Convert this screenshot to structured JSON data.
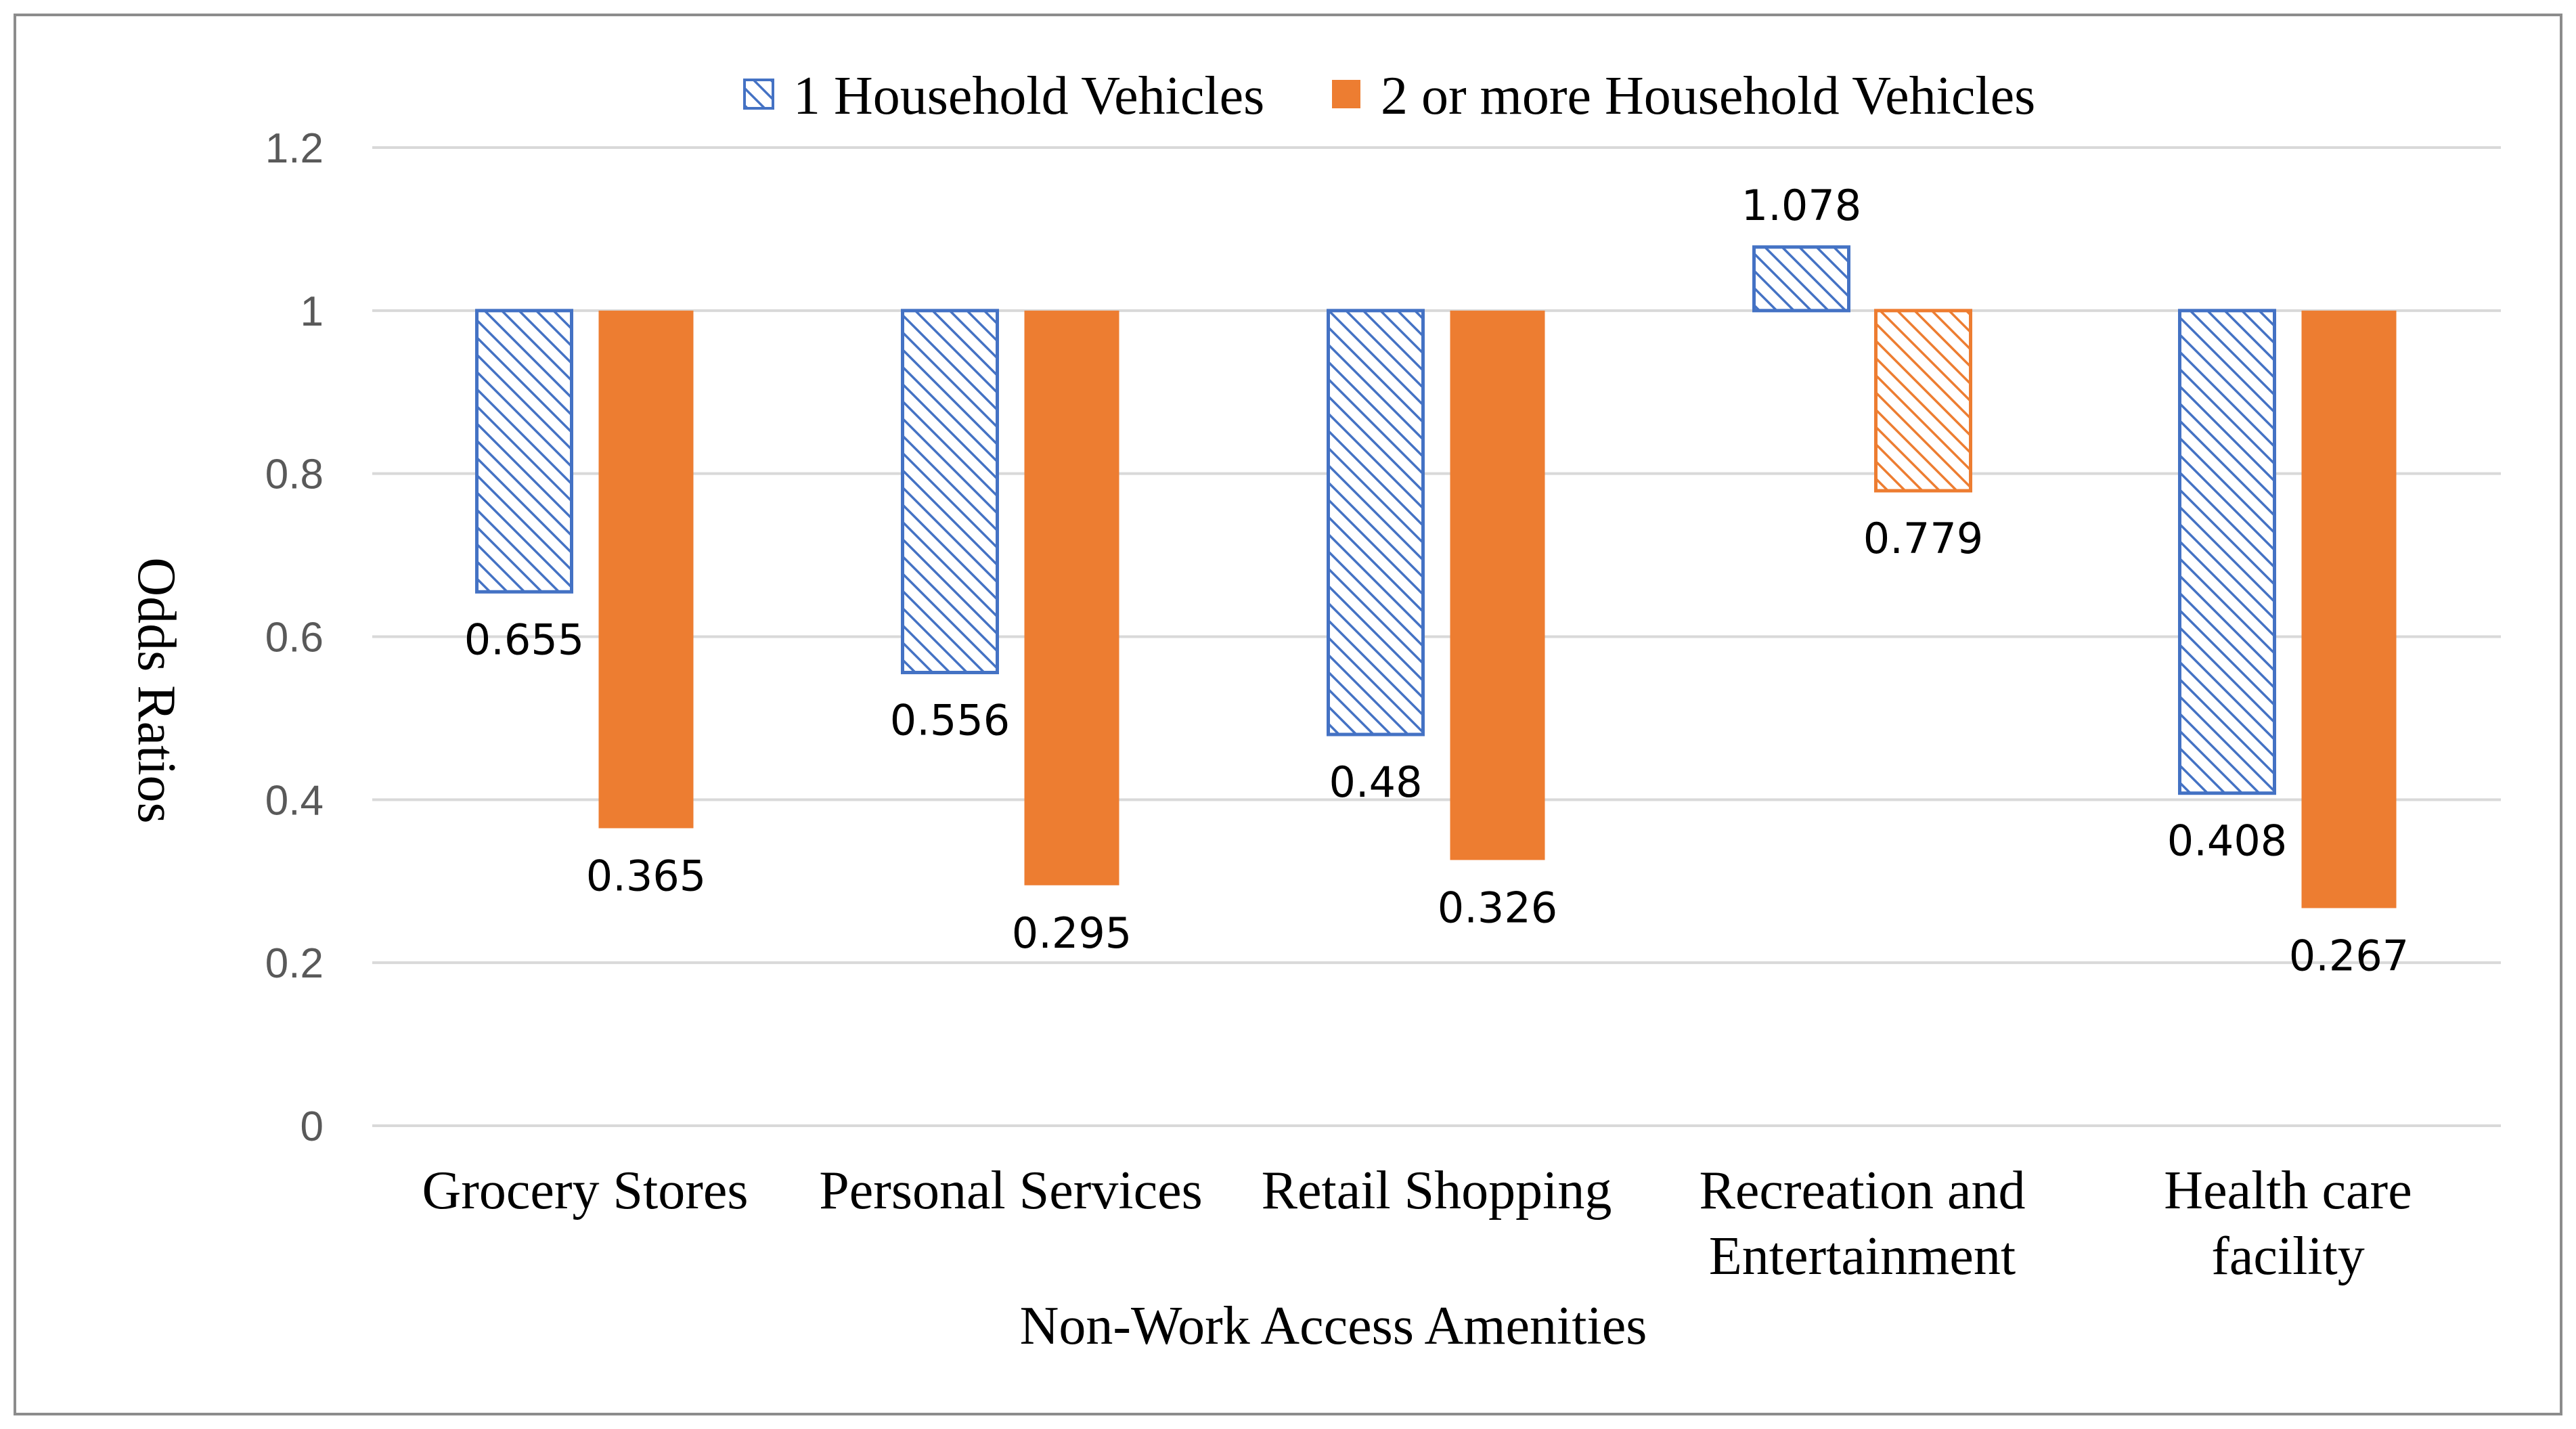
{
  "chart_data": {
    "type": "bar",
    "title": "",
    "xlabel": "Non-Work Access Amenities",
    "ylabel": "Odds Ratios",
    "ylim": [
      0,
      1.2
    ],
    "yticks": [
      0,
      0.2,
      0.4,
      0.6,
      0.8,
      1,
      1.2
    ],
    "ytick_labels": [
      "0",
      "0.2",
      "0.4",
      "0.6",
      "0.8",
      "1",
      "1.2"
    ],
    "baseline": 1,
    "grid": true,
    "legend_position": "top",
    "categories": [
      [
        "Grocery Stores"
      ],
      [
        "Personal Services"
      ],
      [
        "Retail Shopping"
      ],
      [
        "Recreation and",
        "Entertainment"
      ],
      [
        "Health care",
        "facility"
      ]
    ],
    "series": [
      {
        "name": "1 Household Vehicles",
        "color": "#4472c4",
        "pattern": "hatched",
        "values": [
          0.655,
          0.556,
          0.48,
          1.078,
          0.408
        ],
        "labels": [
          "0.655",
          "0.556",
          "0.48",
          "1.078",
          "0.408"
        ],
        "hatched": [
          true,
          true,
          true,
          true,
          true
        ]
      },
      {
        "name": "2 or more Household Vehicles",
        "color": "#ed7d31",
        "pattern": "solid",
        "values": [
          0.365,
          0.295,
          0.326,
          0.779,
          0.267
        ],
        "labels": [
          "0.365",
          "0.295",
          "0.326",
          "0.779",
          "0.267"
        ],
        "hatched": [
          false,
          false,
          false,
          true,
          false
        ]
      }
    ]
  }
}
